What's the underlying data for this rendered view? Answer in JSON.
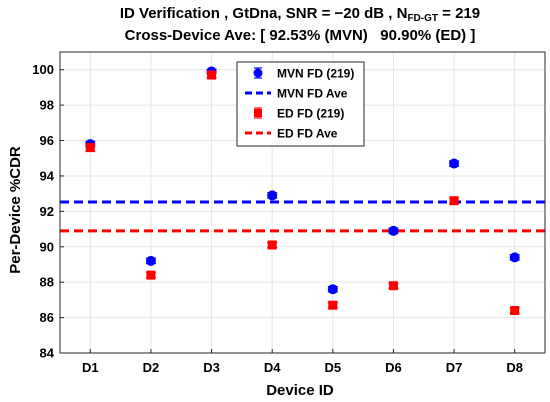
{
  "chart_data": {
    "type": "scatter",
    "title_line1_prefix": "ID Verification , GtDna, SNR = −20 dB , N",
    "title_line1_sub": "FD-GT",
    "title_line1_suffix": " = 219",
    "title_line2": "Cross-Device Ave: [ 92.53% (MVN)   90.90% (ED) ]",
    "xlabel": "Device ID",
    "ylabel": "Per-Device %CDR",
    "categories": [
      "D1",
      "D2",
      "D3",
      "D4",
      "D5",
      "D6",
      "D7",
      "D8"
    ],
    "ylim": [
      84,
      101
    ],
    "yticks": [
      84,
      86,
      88,
      90,
      92,
      94,
      96,
      98,
      100
    ],
    "grid": true,
    "legend_position": "top-center",
    "series": [
      {
        "name": "MVN FD (219)",
        "marker": "circle",
        "color": "#0000ff",
        "values": [
          95.8,
          89.2,
          99.9,
          92.9,
          87.6,
          90.9,
          94.7,
          89.4
        ],
        "err": [
          0.15,
          0.15,
          0.12,
          0.15,
          0.15,
          0.15,
          0.15,
          0.15
        ]
      },
      {
        "name": "ED FD (219)",
        "marker": "square",
        "color": "#ff0000",
        "values": [
          95.6,
          88.4,
          99.7,
          90.1,
          86.7,
          87.8,
          92.6,
          86.4
        ],
        "err": [
          0.2,
          0.15,
          0.15,
          0.15,
          0.15,
          0.15,
          0.15,
          0.15
        ]
      }
    ],
    "reference_lines": [
      {
        "name": "MVN FD Ave",
        "value": 92.53,
        "color": "#0000ff",
        "style": "dashed"
      },
      {
        "name": "ED FD Ave",
        "value": 90.9,
        "color": "#ff0000",
        "style": "dashed"
      }
    ]
  }
}
